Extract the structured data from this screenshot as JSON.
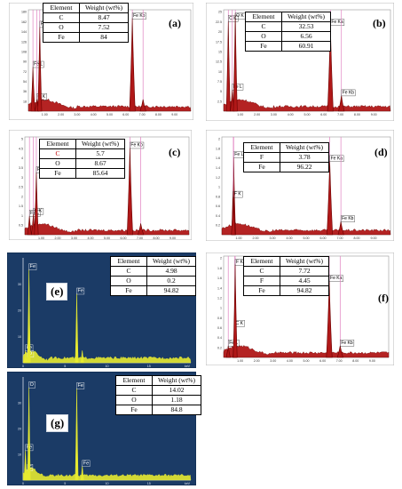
{
  "panels": [
    {
      "id": "a",
      "label": "(a)",
      "style": "light",
      "box": [],
      "table": {
        "header": [
          "Element",
          "Weight (wt%)"
        ],
        "rows": [
          [
            "C",
            "8.47"
          ],
          [
            "O",
            "7.52"
          ],
          [
            "Fe",
            "84"
          ]
        ]
      },
      "peak_labels": [
        "Fe L",
        "O K",
        "Fe Ka",
        "Fe Kb"
      ],
      "ytick_labels": [
        "18",
        "36",
        "54",
        "72",
        "90",
        "108",
        "126",
        "144",
        "162",
        "180"
      ],
      "xtick_labels": [
        "1.00",
        "2.00",
        "3.00",
        "4.00",
        "5.00",
        "6.00",
        "7.00",
        "8.00",
        "9.00"
      ]
    },
    {
      "id": "b",
      "label": "(b)",
      "style": "light",
      "table": {
        "header": [
          "Element",
          "Weight (wt%)"
        ],
        "rows": [
          [
            "C",
            "32.53"
          ],
          [
            "O",
            "6.56"
          ],
          [
            "Fe",
            "60.91"
          ]
        ]
      },
      "peak_labels": [
        "C K",
        "Fe L",
        "O K",
        "Fe Ka",
        "Fe Kb"
      ],
      "ytick_labels": [
        "2.5",
        "5",
        "7.5",
        "10",
        "12.5",
        "15",
        "17.5",
        "20",
        "22.5",
        "25"
      ],
      "xtick_labels": [
        "1.00",
        "2.00",
        "3.00",
        "4.00",
        "5.00",
        "6.00",
        "7.00",
        "8.00",
        "9.00"
      ]
    },
    {
      "id": "c",
      "label": "(c)",
      "style": "light",
      "table": {
        "header": [
          "Element",
          "Weight (wt%)"
        ],
        "rows": [
          [
            "C",
            "5.7"
          ],
          [
            "O",
            "8.67"
          ],
          [
            "Fe",
            "85.64"
          ]
        ]
      },
      "peak_labels": [
        "Fe L",
        "O K",
        "Fe Ka",
        "Fe Kb"
      ],
      "ytick_labels": [
        "0.5",
        "1",
        "1.5",
        "2",
        "2.5",
        "3",
        "3.5",
        "4",
        "4.5",
        "5"
      ],
      "xtick_labels": [
        "1.00",
        "2.00",
        "3.00",
        "4.00",
        "5.00",
        "6.00",
        "7.00",
        "8.00",
        "9.00"
      ]
    },
    {
      "id": "d",
      "label": "(d)",
      "style": "light",
      "table": {
        "header": [
          "Element",
          "Weight (wt%)"
        ],
        "rows": [
          [
            "F",
            "3.78"
          ],
          [
            "Fe",
            "96.22"
          ]
        ]
      },
      "peak_labels": [
        "Fe L",
        "F K",
        "Fe Ka",
        "Fe Kb"
      ],
      "ytick_labels": [
        "0.2",
        "0.4",
        "0.6",
        "0.8",
        "1",
        "1.2",
        "1.4",
        "1.6",
        "1.8",
        "2"
      ],
      "xtick_labels": [
        "1.00",
        "2.00",
        "3.00",
        "4.00",
        "5.00",
        "6.00",
        "7.00",
        "8.00",
        "9.00"
      ]
    },
    {
      "id": "e",
      "label": "(e)",
      "style": "dark",
      "table": {
        "header": [
          "Element",
          "Weight (wt%)"
        ],
        "rows": [
          [
            "C",
            "4.98"
          ],
          [
            "O",
            "0.2"
          ],
          [
            "Fe",
            "94.82"
          ]
        ]
      },
      "peak_labels": [
        "Fe",
        "O",
        "Fe",
        "Fe"
      ],
      "ytick_labels": [
        "10",
        "20",
        "30"
      ],
      "xtick_labels": [
        "0",
        "5",
        "10",
        "15",
        "keV"
      ]
    },
    {
      "id": "f",
      "label": "(f)",
      "style": "light",
      "table": {
        "header": [
          "Element",
          "Weight (wt%)"
        ],
        "rows": [
          [
            "C",
            "7.72"
          ],
          [
            "F",
            "4.45"
          ],
          [
            "Fe",
            "94.82"
          ]
        ]
      },
      "peak_labels": [
        "Fe L",
        "C K",
        "F K",
        "Fe Ka",
        "Fe Kb"
      ],
      "ytick_labels": [
        "0.2",
        "0.4",
        "0.6",
        "0.8",
        "1",
        "1.2",
        "1.4",
        "1.6",
        "1.8",
        "2"
      ],
      "xtick_labels": [
        "1.00",
        "2.00",
        "3.00",
        "4.00",
        "5.00",
        "6.00",
        "7.00",
        "8.00",
        "9.00"
      ]
    },
    {
      "id": "g",
      "label": "(g)",
      "style": "dark",
      "table": {
        "header": [
          "Element",
          "Weight (wt%)"
        ],
        "rows": [
          [
            "C",
            "14.02"
          ],
          [
            "O",
            "1.18"
          ],
          [
            "Fe",
            "84.8"
          ]
        ]
      },
      "peak_labels": [
        "Fe",
        "C",
        "O",
        "Fe",
        "Fe"
      ],
      "ytick_labels": [
        "10",
        "20",
        "30"
      ],
      "xtick_labels": [
        "0",
        "5",
        "10",
        "15",
        "keV"
      ]
    }
  ],
  "chart_data": [
    {
      "type": "area",
      "panel": "a",
      "x_unit": "keV",
      "x": [
        0.28,
        0.52,
        0.7,
        6.4,
        7.06
      ],
      "values": [
        0.45,
        0.12,
        0.86,
        0.95,
        0.12
      ],
      "xlim": [
        0,
        10
      ]
    },
    {
      "type": "area",
      "panel": "b",
      "x_unit": "keV",
      "x": [
        0.28,
        0.52,
        0.7,
        6.4,
        7.06
      ],
      "values": [
        0.92,
        0.22,
        1.0,
        0.88,
        0.16
      ],
      "xlim": [
        0,
        10
      ]
    },
    {
      "type": "area",
      "panel": "c",
      "x_unit": "keV",
      "x": [
        0.28,
        0.52,
        0.7,
        6.4,
        7.06
      ],
      "values": [
        0.2,
        0.22,
        0.66,
        0.92,
        0.12
      ],
      "xlim": [
        0,
        10
      ]
    },
    {
      "type": "area",
      "panel": "d",
      "x_unit": "keV",
      "x": [
        0.7,
        0.68,
        6.4,
        7.06
      ],
      "values": [
        0.82,
        0.4,
        0.78,
        0.14
      ],
      "xlim": [
        0,
        10
      ]
    },
    {
      "type": "area",
      "panel": "e",
      "x_unit": "keV",
      "x": [
        0.28,
        0.52,
        0.7,
        6.4,
        7.06
      ],
      "values": [
        0.12,
        0.06,
        0.92,
        0.68,
        0.12
      ],
      "xlim": [
        0,
        20
      ]
    },
    {
      "type": "area",
      "panel": "f",
      "x_unit": "keV",
      "x": [
        0.28,
        0.68,
        0.7,
        6.4,
        7.06
      ],
      "values": [
        0.12,
        0.32,
        0.95,
        0.78,
        0.12
      ],
      "xlim": [
        0,
        10
      ]
    },
    {
      "type": "area",
      "panel": "g",
      "x_unit": "keV",
      "x": [
        0.28,
        0.52,
        0.7,
        6.4,
        7.06
      ],
      "values": [
        0.3,
        0.1,
        0.93,
        0.92,
        0.14
      ],
      "xlim": [
        0,
        20
      ]
    }
  ],
  "colors": {
    "peak_fill": "#b01818",
    "peak_edge": "#6a0000",
    "pink_line": "#e080c0",
    "dark_bg": "#1b3b66",
    "dark_trace": "#e6ea30",
    "table_border": "#000000"
  }
}
